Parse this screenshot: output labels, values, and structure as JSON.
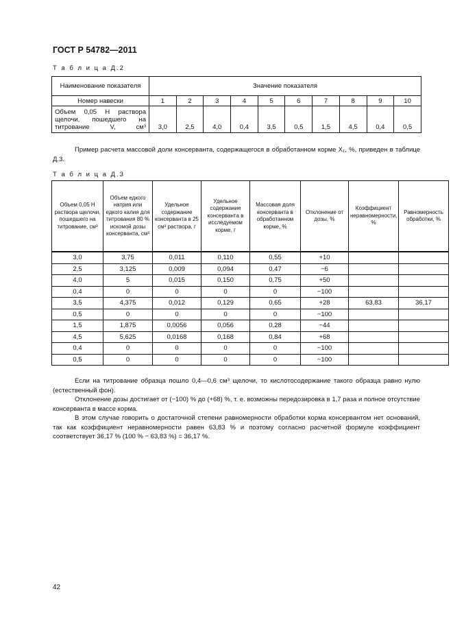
{
  "header": {
    "doc_title": "ГОСТ Р 54782—2011"
  },
  "table_d2": {
    "caption": "Т а б л и ц а  Д.2",
    "head_name": "Наименование показателя",
    "head_value": "Значение показателя",
    "row1_label": "Номер навески",
    "row1_values": [
      "1",
      "2",
      "3",
      "4",
      "5",
      "6",
      "7",
      "8",
      "9",
      "10"
    ],
    "row2_label": "Объем 0,05 Н раствора щелочи, пошедшего на титрование V, см³",
    "row2_values": [
      "3,0",
      "2,5",
      "4,0",
      "0,4",
      "3,5",
      "0,5",
      "1,5",
      "4,5",
      "0,4",
      "0,5"
    ]
  },
  "intro_paragraph": "Пример расчета массовой доли консерванта, содержащегося в обработанном корме X₁, %, приведен в таблице Д.3.",
  "table_d3": {
    "caption": "Т а б л и ц а  Д.3",
    "headers": [
      "Объем 0,05 Н раствора щелочи, пошедшего на титрование, см³",
      "Объем едкого натрия или едкого калия для титрования 80 % искомой дозы консерванта, см³",
      "Удельное содержание консерванта в 25 см³ раствора, г",
      "Удельное содержание консерванта в исследуемом корме, г",
      "Массовая доля консерванта в обработанном корме, %",
      "Отклонение от дозы, %",
      "Коэффициент неравномерности, %",
      "Равномерность обработки, %"
    ],
    "rows": [
      [
        "3,0",
        "3,75",
        "0,011",
        "0,110",
        "0,55",
        "+10",
        "",
        ""
      ],
      [
        "2,5",
        "3,125",
        "0,009",
        "0,094",
        "0,47",
        "−6",
        "",
        ""
      ],
      [
        "4,0",
        "5",
        "0,015",
        "0,150",
        "0,75",
        "+50",
        "",
        ""
      ],
      [
        "0,4",
        "0",
        "0",
        "0",
        "0",
        "−100",
        "",
        ""
      ],
      [
        "3,5",
        "4,375",
        "0,012",
        "0,129",
        "0,65",
        "+28",
        "63,83",
        "36,17"
      ],
      [
        "0,5",
        "0",
        "0",
        "0",
        "0",
        "−100",
        "",
        ""
      ],
      [
        "1,5",
        "1,875",
        "0,0056",
        "0,056",
        "0,28",
        "−44",
        "",
        ""
      ],
      [
        "4,5",
        "5,625",
        "0,0168",
        "0,168",
        "0,84",
        "+68",
        "",
        ""
      ],
      [
        "0,4",
        "0",
        "0",
        "0",
        "0",
        "−100",
        "",
        ""
      ],
      [
        "0,5",
        "0",
        "0",
        "0",
        "0",
        "−100",
        "",
        ""
      ]
    ]
  },
  "paragraphs": [
    "Если на титрование образца пошло 0,4—0,6 см³ щелочи, то кислотосодержание такого образца равно нулю (естественный фон).",
    "Отклонение дозы достигает от (−100) % до (+68) %, т. е. возможны передозировка в 1,7 раза и полное отсутствие консерванта в массе корма.",
    "В этом случае говорить о достаточной степени равномерности обработки корма консервантом нет оснований, так как коэффициент неравномерности равен 63,83 % и поэтому согласно расчетной формуле коэффициент соответствует 36,17 % (100 % − 63,83 %) = 36,17 %."
  ],
  "footer": {
    "page_number": "42"
  }
}
